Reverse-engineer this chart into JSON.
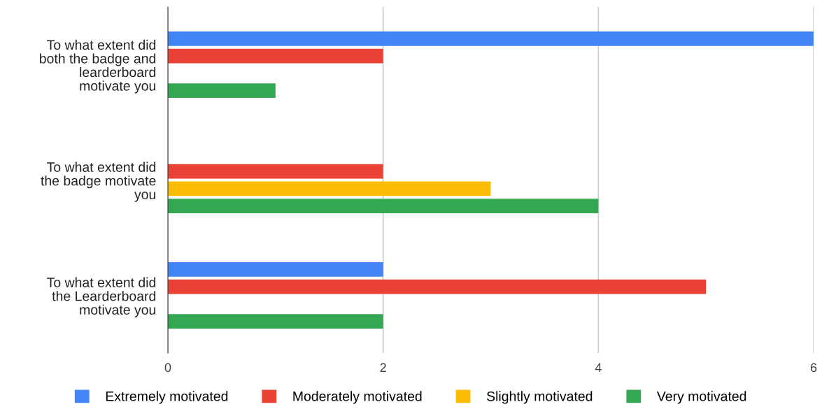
{
  "chart_data": {
    "type": "bar",
    "orientation": "horizontal",
    "categories": [
      "To what extent did both the badge and learderboard motivate you",
      "To what extent did the badge motivate you",
      "To what extent did the Learderboard motivate you"
    ],
    "series": [
      {
        "name": "Extremely motivated",
        "color": "#4285f4",
        "values": [
          6,
          0,
          2
        ]
      },
      {
        "name": "Moderately motivated",
        "color": "#ea4335",
        "values": [
          2,
          2,
          5
        ]
      },
      {
        "name": "Slightly motivated",
        "color": "#fbbc04",
        "values": [
          0,
          3,
          0
        ]
      },
      {
        "name": "Very motivated",
        "color": "#34a853",
        "values": [
          1,
          4,
          2
        ]
      }
    ],
    "xlim": [
      0,
      6
    ],
    "xticks": [
      0,
      2,
      4,
      6
    ],
    "grid": "x",
    "legend": "bottom"
  }
}
